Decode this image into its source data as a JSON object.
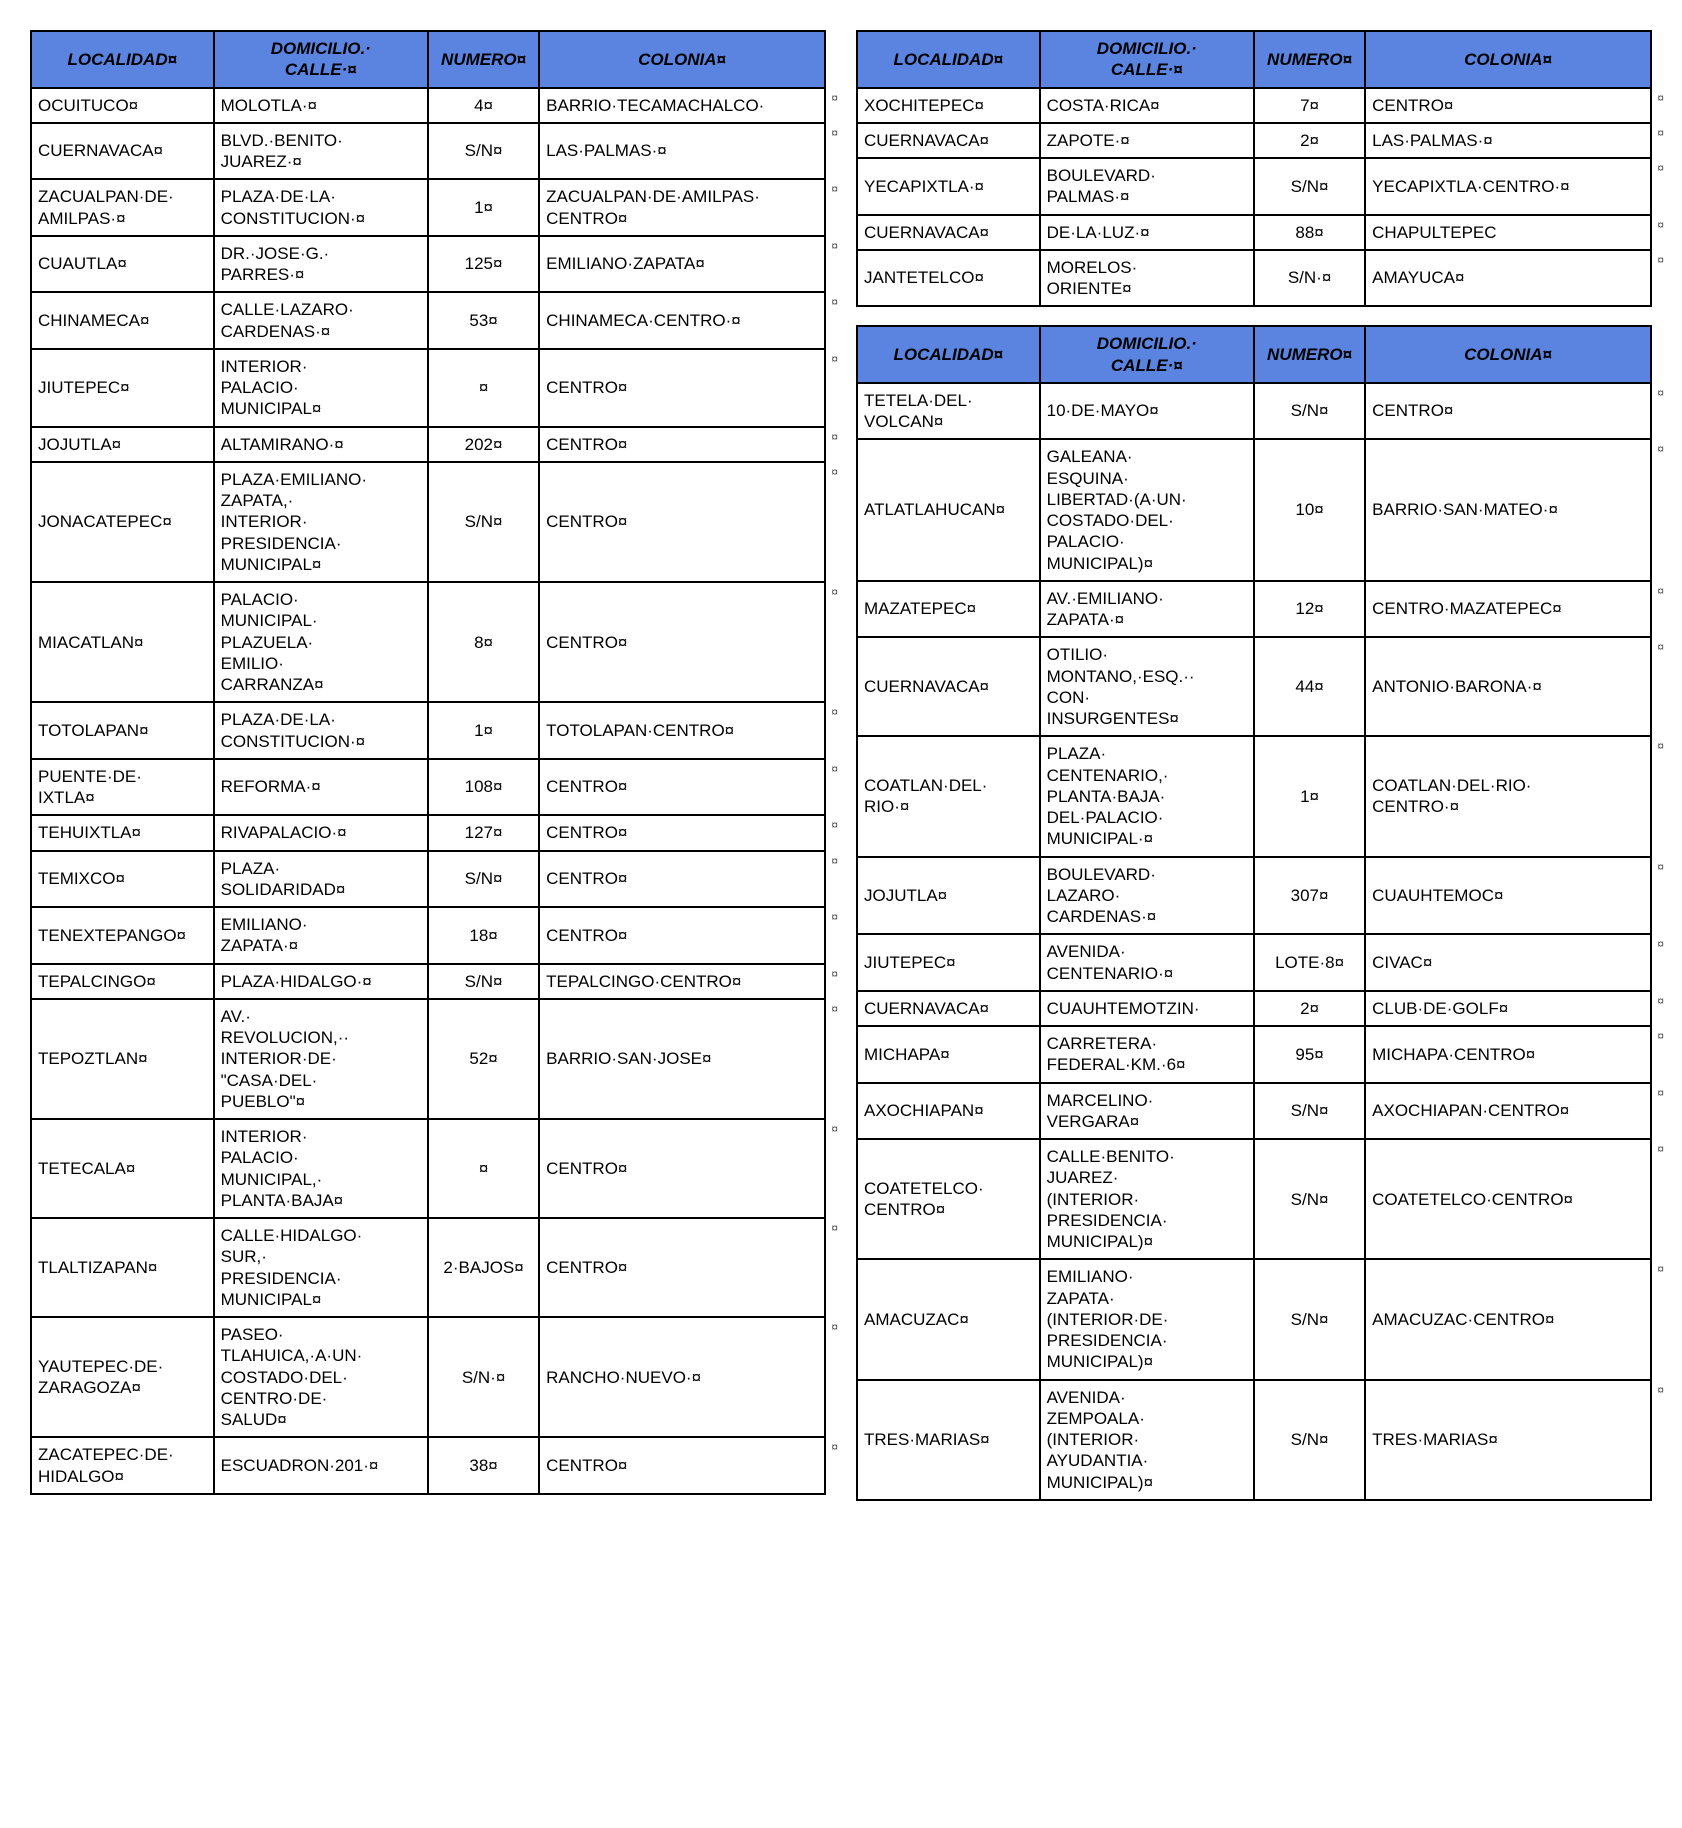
{
  "header_bg": "#5a84e0",
  "border_color": "#000000",
  "text_color": "#000000",
  "font_family": "Arial",
  "header_font_size_pt": 13,
  "cell_font_size_pt": 13,
  "formatting_mark": "¤",
  "outer_mark": "¤",
  "columns": [
    {
      "key": "localidad",
      "label": "LOCALIDAD¤",
      "class": "c-localidad"
    },
    {
      "key": "domicilio",
      "label": "DOMICILIO.·\nCALLE·¤",
      "class": "c-domicilio"
    },
    {
      "key": "numero",
      "label": "NUMERO¤",
      "class": "c-numero"
    },
    {
      "key": "colonia",
      "label": "COLONIA¤",
      "class": "c-colonia"
    }
  ],
  "left_tables": [
    {
      "rows": [
        {
          "localidad": "OCUITUCO¤",
          "domicilio": "MOLOTLA·¤",
          "numero": "4¤",
          "colonia": "BARRIO·TECAMACHALCO·"
        },
        {
          "localidad": "CUERNAVACA¤",
          "domicilio": "BLVD.·BENITO·\nJUAREZ·¤",
          "numero": "S/N¤",
          "colonia": "LAS·PALMAS·¤"
        },
        {
          "localidad": "ZACUALPAN·DE·\nAMILPAS·¤",
          "domicilio": "PLAZA·DE·LA·\nCONSTITUCION·¤",
          "numero": "1¤",
          "colonia": "ZACUALPAN·DE·AMILPAS·\nCENTRO¤"
        },
        {
          "localidad": "CUAUTLA¤",
          "domicilio": "DR.·JOSE·G.·\nPARRES·¤",
          "numero": "125¤",
          "colonia": "EMILIANO·ZAPATA¤"
        },
        {
          "localidad": "CHINAMECA¤",
          "domicilio": "CALLE·LAZARO·\nCARDENAS·¤",
          "numero": "53¤",
          "colonia": "CHINAMECA·CENTRO·¤"
        },
        {
          "localidad": "JIUTEPEC¤",
          "domicilio": "INTERIOR·\nPALACIO·\nMUNICIPAL¤",
          "numero": "¤",
          "colonia": "CENTRO¤"
        },
        {
          "localidad": "JOJUTLA¤",
          "domicilio": "ALTAMIRANO·¤",
          "numero": "202¤",
          "colonia": "CENTRO¤"
        },
        {
          "localidad": "JONACATEPEC¤",
          "domicilio": "PLAZA·EMILIANO·\nZAPATA,·\nINTERIOR·\nPRESIDENCIA·\nMUNICIPAL¤",
          "numero": "S/N¤",
          "colonia": "CENTRO¤"
        },
        {
          "localidad": "MIACATLAN¤",
          "domicilio": "PALACIO·\nMUNICIPAL·\nPLAZUELA·\nEMILIO·\nCARRANZA¤",
          "numero": "8¤",
          "colonia": "CENTRO¤"
        },
        {
          "localidad": "TOTOLAPAN¤",
          "domicilio": "PLAZA·DE·LA·\nCONSTITUCION·¤",
          "numero": "1¤",
          "colonia": "TOTOLAPAN·CENTRO¤"
        },
        {
          "localidad": "PUENTE·DE·\nIXTLA¤",
          "domicilio": "REFORMA·¤",
          "numero": "108¤",
          "colonia": "CENTRO¤"
        },
        {
          "localidad": "TEHUIXTLA¤",
          "domicilio": "RIVAPALACIO·¤",
          "numero": "127¤",
          "colonia": "CENTRO¤"
        },
        {
          "localidad": "TEMIXCO¤",
          "domicilio": "PLAZA·\nSOLIDARIDAD¤",
          "numero": "S/N¤",
          "colonia": "CENTRO¤"
        },
        {
          "localidad": "TENEXTEPANGO¤",
          "domicilio": "EMILIANO·\nZAPATA·¤",
          "numero": "18¤",
          "colonia": "CENTRO¤"
        },
        {
          "localidad": "TEPALCINGO¤",
          "domicilio": "PLAZA·HIDALGO·¤",
          "numero": "S/N¤",
          "colonia": "TEPALCINGO·CENTRO¤"
        },
        {
          "localidad": "TEPOZTLAN¤",
          "domicilio": "AV.·\nREVOLUCION,··\nINTERIOR·DE·\n\"CASA·DEL·\nPUEBLO\"¤",
          "numero": "52¤",
          "colonia": "BARRIO·SAN·JOSE¤"
        },
        {
          "localidad": "TETECALA¤",
          "domicilio": "INTERIOR·\nPALACIO·\nMUNICIPAL,·\nPLANTA·BAJA¤",
          "numero": "¤",
          "colonia": "CENTRO¤"
        },
        {
          "localidad": "TLALTIZAPAN¤",
          "domicilio": "CALLE·HIDALGO·\nSUR,·\nPRESIDENCIA·\nMUNICIPAL¤",
          "numero": "2·BAJOS¤",
          "colonia": "CENTRO¤"
        },
        {
          "localidad": "YAUTEPEC·DE·\nZARAGOZA¤",
          "domicilio": "PASEO·\nTLAHUICA,·A·UN·\nCOSTADO·DEL·\nCENTRO·DE·\nSALUD¤",
          "numero": "S/N·¤",
          "colonia": "RANCHO·NUEVO·¤"
        },
        {
          "localidad": "ZACATEPEC·DE·\nHIDALGO¤",
          "domicilio": "ESCUADRON·201·¤",
          "numero": "38¤",
          "colonia": "CENTRO¤"
        }
      ]
    }
  ],
  "right_tables": [
    {
      "rows": [
        {
          "localidad": "XOCHITEPEC¤",
          "domicilio": "COSTA·RICA¤",
          "numero": "7¤",
          "colonia": "CENTRO¤"
        },
        {
          "localidad": "CUERNAVACA¤",
          "domicilio": "ZAPOTE·¤",
          "numero": "2¤",
          "colonia": "LAS·PALMAS·¤"
        },
        {
          "localidad": "YECAPIXTLA·¤",
          "domicilio": "BOULEVARD·\nPALMAS·¤",
          "numero": "S/N¤",
          "colonia": "YECAPIXTLA·CENTRO·¤"
        },
        {
          "localidad": "CUERNAVACA¤",
          "domicilio": "DE·LA·LUZ·¤",
          "numero": "88¤",
          "colonia": "CHAPULTEPEC"
        },
        {
          "localidad": "JANTETELCO¤",
          "domicilio": "MORELOS·\nORIENTE¤",
          "numero": "S/N·¤",
          "colonia": "AMAYUCA¤"
        }
      ]
    },
    {
      "rows": [
        {
          "localidad": "TETELA·DEL·\nVOLCAN¤",
          "domicilio": "10·DE·MAYO¤",
          "numero": "S/N¤",
          "colonia": "CENTRO¤"
        },
        {
          "localidad": "ATLATLAHUCAN¤",
          "domicilio": "GALEANA·\nESQUINA·\nLIBERTAD·(A·UN·\nCOSTADO·DEL·\nPALACIO·\nMUNICIPAL)¤",
          "numero": "10¤",
          "colonia": "BARRIO·SAN·MATEO·¤"
        },
        {
          "localidad": "MAZATEPEC¤",
          "domicilio": "AV.·EMILIANO·\nZAPATA·¤",
          "numero": "12¤",
          "colonia": "CENTRO·MAZATEPEC¤"
        },
        {
          "localidad": "CUERNAVACA¤",
          "domicilio": "OTILIO·\nMONTANO,·ESQ.··\nCON·\nINSURGENTES¤",
          "numero": "44¤",
          "colonia": "ANTONIO·BARONA·¤"
        },
        {
          "localidad": "COATLAN·DEL·\nRIO·¤",
          "domicilio": "PLAZA·\nCENTENARIO,·\nPLANTA·BAJA·\nDEL·PALACIO·\nMUNICIPAL·¤",
          "numero": "1¤",
          "colonia": "COATLAN·DEL·RIO·\nCENTRO·¤"
        },
        {
          "localidad": "JOJUTLA¤",
          "domicilio": "BOULEVARD·\nLAZARO·\nCARDENAS·¤",
          "numero": "307¤",
          "colonia": "CUAUHTEMOC¤"
        },
        {
          "localidad": "JIUTEPEC¤",
          "domicilio": "AVENIDA·\nCENTENARIO·¤",
          "numero": "LOTE·8¤",
          "colonia": "CIVAC¤"
        },
        {
          "localidad": "CUERNAVACA¤",
          "domicilio": "CUAUHTEMOTZIN·",
          "numero": "2¤",
          "colonia": "CLUB·DE·GOLF¤"
        },
        {
          "localidad": "MICHAPA¤",
          "domicilio": "CARRETERA·\nFEDERAL·KM.·6¤",
          "numero": "95¤",
          "colonia": "MICHAPA·CENTRO¤"
        },
        {
          "localidad": "AXOCHIAPAN¤",
          "domicilio": "MARCELINO·\nVERGARA¤",
          "numero": "S/N¤",
          "colonia": "AXOCHIAPAN·CENTRO¤"
        },
        {
          "localidad": "COATETELCO·\nCENTRO¤",
          "domicilio": "CALLE·BENITO·\nJUAREZ·\n(INTERIOR·\nPRESIDENCIA·\nMUNICIPAL)¤",
          "numero": "S/N¤",
          "colonia": "COATETELCO·CENTRO¤"
        },
        {
          "localidad": "AMACUZAC¤",
          "domicilio": "EMILIANO·\nZAPATA·\n(INTERIOR·DE·\nPRESIDENCIA·\nMUNICIPAL)¤",
          "numero": "S/N¤",
          "colonia": "AMACUZAC·CENTRO¤"
        },
        {
          "localidad": "TRES·MARIAS¤",
          "domicilio": "AVENIDA·\nZEMPOALA·\n(INTERIOR·\nAYUDANTIA·\nMUNICIPAL)¤",
          "numero": "S/N¤",
          "colonia": "TRES·MARIAS¤"
        }
      ]
    }
  ]
}
